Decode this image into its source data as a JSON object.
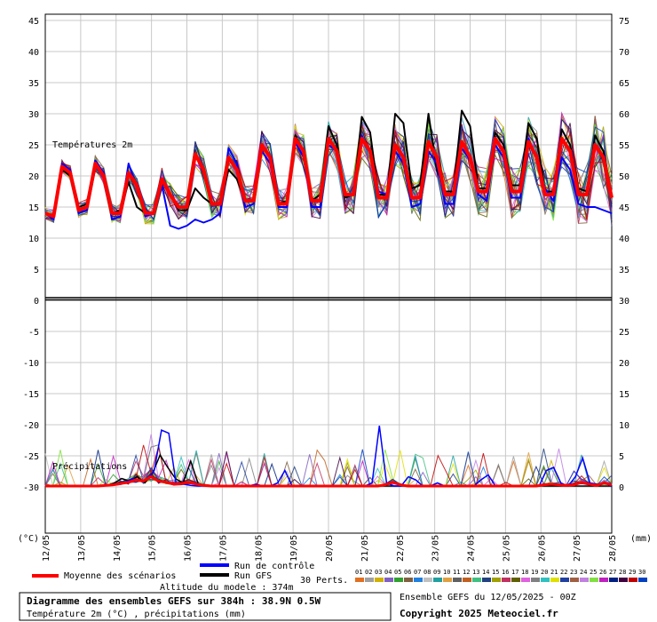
{
  "chart_data": {
    "type": "line",
    "title": "Diagramme des ensembles GEFS sur 384h : 38.9N 0.5W",
    "subtitle": "Température 2m (°C) , précipitations (mm)",
    "model_altitude": "Altitude du modele : 374m",
    "run_info": "Ensemble GEFS du 12/05/2025 - 00Z",
    "copyright": "Copyright 2025 Meteociel.fr",
    "temp_label": "Températures 2m",
    "precip_label": "Précipitations",
    "left_unit": "(°C)",
    "right_unit": "(mm)",
    "left_ticks": [
      45,
      40,
      35,
      30,
      25,
      20,
      15,
      10,
      5,
      0,
      -5,
      -10,
      -15,
      -20,
      -25,
      -30
    ],
    "right_ticks": [
      75,
      70,
      65,
      60,
      55,
      50,
      45,
      40,
      35,
      30,
      25,
      20,
      15,
      10,
      5,
      0
    ],
    "x_labels": [
      "12/05",
      "13/05",
      "14/05",
      "15/05",
      "16/05",
      "17/05",
      "18/05",
      "19/05",
      "20/05",
      "21/05",
      "22/05",
      "23/05",
      "24/05",
      "25/05",
      "26/05",
      "27/05",
      "28/05"
    ],
    "legend": {
      "mean": "Moyenne des scénarios",
      "control": "Run de contrôle",
      "gfs": "Run GFS",
      "perts": "30 Perts.",
      "members": [
        "01",
        "02",
        "03",
        "04",
        "05",
        "06",
        "07",
        "08",
        "09",
        "10",
        "11",
        "12",
        "13",
        "14",
        "15",
        "16",
        "17",
        "18",
        "19",
        "20",
        "21",
        "22",
        "23",
        "24",
        "25",
        "26",
        "27",
        "28",
        "29",
        "30"
      ],
      "member_colors": [
        "#e07020",
        "#a0a0a0",
        "#d0b000",
        "#8060c0",
        "#30a030",
        "#806040",
        "#2080e0",
        "#c0c0c0",
        "#20a0a0",
        "#e0a040",
        "#606060",
        "#c06020",
        "#40c080",
        "#204080",
        "#a0a000",
        "#c03060",
        "#606000",
        "#e060e0",
        "#808080",
        "#30c0c0",
        "#e0e000",
        "#2040a0",
        "#a06040",
        "#c080e0",
        "#80e040",
        "#c020c0",
        "#002080",
        "#400040",
        "#c00000",
        "#0040c0"
      ]
    },
    "series": [
      {
        "name": "Moyenne des scénarios",
        "color": "#ff0000",
        "temp": [
          14.0,
          13.5,
          21.5,
          20.5,
          14.5,
          15.0,
          22.0,
          20.0,
          14.0,
          14.0,
          20.5,
          18.5,
          14.0,
          14.0,
          19.5,
          17.0,
          15.0,
          15.0,
          23.5,
          21.0,
          15.5,
          15.5,
          23.0,
          21.0,
          16.0,
          16.0,
          25.0,
          23.0,
          15.5,
          15.5,
          26.0,
          24.0,
          16.0,
          16.0,
          26.0,
          24.0,
          17.0,
          17.0,
          26.0,
          24.0,
          16.5,
          16.5,
          25.0,
          23.0,
          16.5,
          16.5,
          25.5,
          23.0,
          17.0,
          17.0,
          25.5,
          23.0,
          17.5,
          17.5,
          26.0,
          24.0,
          17.5,
          17.5,
          25.5,
          23.0,
          17.0,
          17.0,
          26.0,
          24.0,
          17.0,
          17.0,
          25.0,
          23.0,
          16.5
        ],
        "precip": [
          0,
          0,
          0,
          0,
          0,
          0,
          0,
          0,
          0.1,
          0.2,
          0.4,
          0.6,
          1.0,
          0.8,
          1.5,
          0.8,
          0.6,
          0.3,
          0.4,
          0.6,
          0.3,
          0.1,
          0,
          0,
          0,
          0,
          0,
          0,
          0,
          0,
          0,
          0,
          0,
          0,
          0,
          0,
          0,
          0,
          0,
          0,
          0,
          0,
          0,
          0,
          0,
          0.2,
          0.6,
          0.2,
          0,
          0,
          0,
          0,
          0,
          0,
          0,
          0,
          0,
          0,
          0,
          0,
          0,
          0,
          0,
          0,
          0,
          0,
          0.2,
          0.3,
          0.2,
          0.1,
          0.2,
          0.6,
          0.3,
          0.1,
          0.5,
          0.2
        ]
      },
      {
        "name": "Run de contrôle",
        "color": "#0000ff",
        "temp": [
          14.0,
          13.0,
          22.0,
          21.0,
          14.0,
          14.5,
          22.5,
          20.5,
          13.0,
          13.5,
          22.0,
          18.0,
          13.5,
          14.0,
          18.5,
          12.0,
          11.5,
          12.0,
          13.0,
          12.5,
          13.0,
          14.0,
          24.5,
          22.0,
          15.0,
          15.5,
          24.0,
          22.0,
          15.0,
          15.0,
          25.5,
          23.0,
          15.0,
          15.0,
          25.0,
          24.0,
          17.0,
          17.0,
          26.5,
          23.5,
          17.5,
          17.0,
          24.0,
          22.0,
          15.0,
          15.5,
          24.0,
          22.0,
          15.5,
          15.5,
          24.5,
          22.5,
          17.0,
          16.0,
          25.0,
          23.0,
          16.5,
          16.5,
          26.0,
          23.0,
          18.0,
          16.0,
          23.0,
          21.0,
          15.5,
          15.0,
          15.0,
          14.5,
          14.0
        ],
        "precip": [
          0,
          0,
          0,
          0,
          0,
          0,
          0,
          0,
          0,
          0.2,
          0.3,
          0.6,
          1.2,
          0.8,
          1.0,
          2.5,
          9.0,
          8.5,
          0.5,
          0.3,
          0.1,
          0,
          0,
          0,
          0,
          0,
          0,
          0,
          0,
          0.3,
          0,
          0,
          0.5,
          2.5,
          0,
          0,
          0,
          0,
          0,
          0,
          0,
          0,
          0,
          0,
          0,
          0.5,
          9.7,
          0.5,
          0,
          0,
          1.5,
          1.0,
          0,
          0,
          0.5,
          0,
          0,
          0,
          0,
          0,
          1.0,
          1.8,
          0,
          0,
          0,
          0,
          0,
          0,
          0,
          2.5,
          3.0,
          0.5,
          0,
          1.5,
          4.5,
          0.5,
          0.3,
          0.5,
          0
        ]
      },
      {
        "name": "Run GFS",
        "color": "#000000",
        "temp": [
          14.0,
          13.5,
          21.0,
          20.0,
          15.0,
          15.5,
          22.0,
          20.0,
          14.0,
          14.5,
          19.0,
          15.0,
          14.0,
          14.0,
          19.0,
          17.0,
          14.5,
          14.5,
          18.0,
          16.5,
          15.5,
          15.5,
          21.0,
          19.5,
          16.0,
          16.0,
          25.0,
          23.0,
          15.5,
          16.0,
          26.5,
          24.0,
          16.0,
          17.0,
          28.0,
          25.0,
          16.5,
          17.0,
          29.5,
          27.0,
          17.0,
          17.0,
          30.0,
          28.5,
          18.0,
          18.5,
          30.0,
          21.0,
          17.5,
          17.5,
          30.5,
          28.0,
          18.0,
          18.0,
          27.0,
          25.0,
          18.5,
          18.5,
          28.5,
          26.0,
          17.5,
          17.5,
          27.5,
          25.0,
          18.0,
          17.5,
          26.5,
          24.0,
          17.0
        ],
        "precip": [
          0,
          0,
          0,
          0,
          0,
          0,
          0,
          0,
          0.1,
          0.5,
          1.2,
          0.8,
          1.5,
          0.5,
          2.0,
          5.0,
          3.0,
          1.2,
          0.5,
          4.0,
          0.3,
          0.2,
          0,
          0,
          0,
          0,
          0,
          0,
          0,
          0,
          0,
          0,
          0,
          0,
          0,
          0,
          0,
          0,
          0,
          0,
          0,
          0,
          0,
          0,
          0,
          0,
          0,
          0,
          0,
          0,
          0,
          0,
          0,
          0,
          0,
          0,
          0,
          0,
          0,
          0,
          0,
          0,
          0,
          0,
          0,
          0,
          0,
          0,
          0,
          0,
          0,
          0,
          0,
          0,
          0
        ]
      }
    ]
  }
}
